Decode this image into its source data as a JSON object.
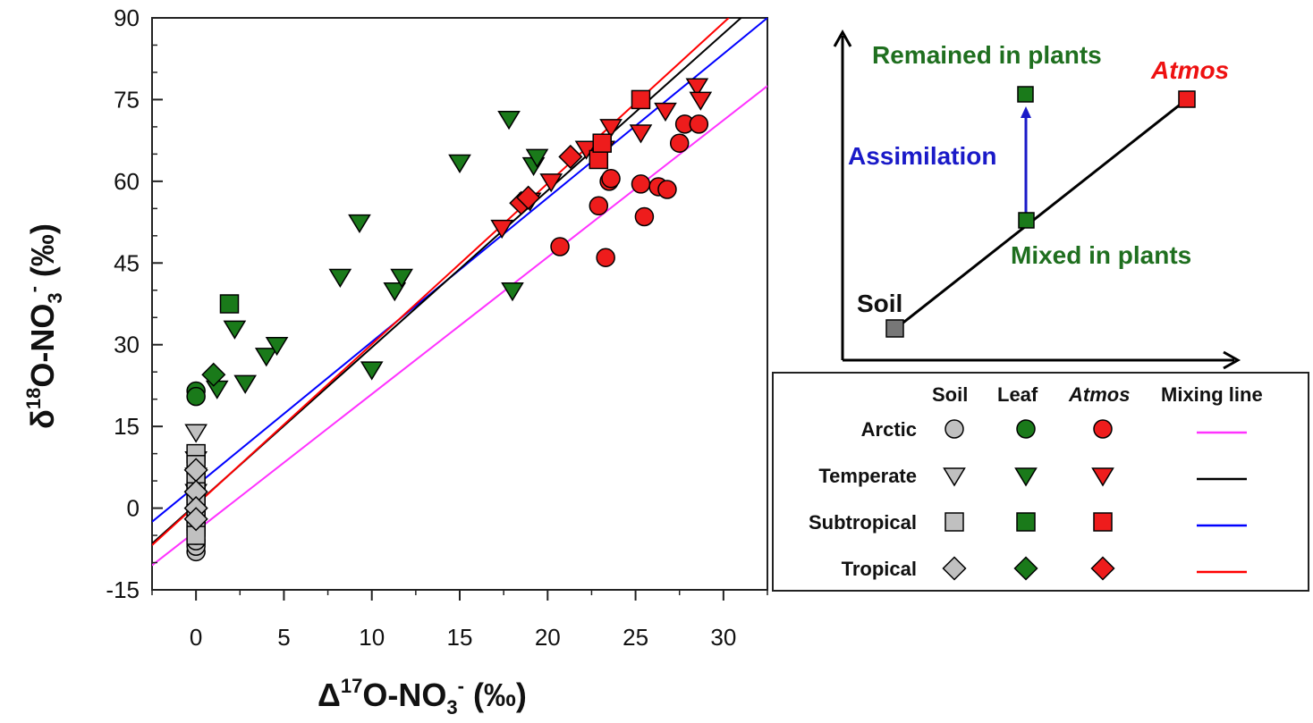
{
  "colors": {
    "soil_fill": "#c0c0c0",
    "leaf_fill": "#1a7a1a",
    "atmos_fill": "#ee1c1c",
    "green_text": "#1f6f1f",
    "blue_text": "#1a1ac8",
    "red_text": "#ee1111",
    "line_arctic": "#ff33ff",
    "line_temperate": "#000000",
    "line_subtropical": "#0000ff",
    "line_tropical": "#ff0000"
  },
  "chart_data": {
    "type": "scatter",
    "xlabel": {
      "main": "Δ",
      "sup": "17",
      "mid": "O-NO",
      "sub": "3",
      "sup2": "-",
      "end": " (‰)"
    },
    "ylabel": {
      "main": "δ",
      "sup": "18",
      "mid": "O-NO",
      "sub": "3",
      "sup2": "-",
      "end": " (‰)"
    },
    "xlim": [
      -2.5,
      32.5
    ],
    "ylim": [
      -15,
      90
    ],
    "xticks": [
      0,
      5,
      10,
      15,
      20,
      25,
      30
    ],
    "yticks": [
      -15,
      0,
      15,
      30,
      45,
      60,
      75,
      90
    ],
    "lines": [
      {
        "name": "Arctic",
        "color": "line_arctic",
        "points": [
          [
            -2.5,
            -10.5
          ],
          [
            32.5,
            77.5
          ]
        ]
      },
      {
        "name": "Subtropical",
        "color": "line_subtropical",
        "points": [
          [
            -2.5,
            -2.5
          ],
          [
            32.5,
            90
          ]
        ]
      },
      {
        "name": "Temperate",
        "color": "line_temperate",
        "points": [
          [
            -2.5,
            -6.5
          ],
          [
            31,
            90
          ]
        ]
      },
      {
        "name": "Tropical",
        "color": "line_tropical",
        "points": [
          [
            -2.5,
            -6.8
          ],
          [
            30.3,
            90
          ]
        ]
      }
    ],
    "series": [
      {
        "name": "Soil Arctic",
        "shape": "circle",
        "fill": "soil_fill",
        "x": [
          0,
          0,
          0,
          0,
          0,
          0,
          0,
          0,
          0,
          0,
          0,
          0,
          0,
          0
        ],
        "y": [
          -8,
          -7,
          -6,
          -5,
          -4,
          -3,
          -2,
          -1,
          0,
          1,
          2,
          3,
          4,
          5
        ]
      },
      {
        "name": "Soil Temperate",
        "shape": "tri_down",
        "fill": "soil_fill",
        "x": [
          0,
          0,
          0,
          0
        ],
        "y": [
          14,
          9,
          6,
          3
        ]
      },
      {
        "name": "Soil Subtropical",
        "shape": "square",
        "fill": "soil_fill",
        "x": [
          0,
          0,
          0,
          0,
          0,
          0,
          0,
          0
        ],
        "y": [
          10,
          8,
          5,
          3,
          1,
          -1,
          -3,
          -5
        ]
      },
      {
        "name": "Soil Tropical",
        "shape": "diamond",
        "fill": "soil_fill",
        "x": [
          0,
          0,
          0,
          0
        ],
        "y": [
          7,
          3,
          0,
          -2
        ]
      },
      {
        "name": "Leaf Arctic",
        "shape": "circle",
        "fill": "leaf_fill",
        "x": [
          0,
          0
        ],
        "y": [
          21.5,
          20.5
        ]
      },
      {
        "name": "Leaf Temperate",
        "shape": "tri_down",
        "fill": "leaf_fill",
        "x": [
          1.2,
          2.2,
          2.8,
          4.0,
          4.6,
          8.2,
          9.3,
          10.0,
          11.3,
          11.7,
          15.0,
          17.8,
          18.0,
          19.2,
          19.4
        ],
        "y": [
          22.0,
          33.0,
          23.0,
          28.0,
          30.0,
          42.5,
          52.5,
          25.5,
          40.0,
          42.5,
          63.5,
          71.5,
          40.0,
          63.0,
          64.5
        ]
      },
      {
        "name": "Leaf Subtropical",
        "shape": "square",
        "fill": "leaf_fill",
        "x": [
          1.9
        ],
        "y": [
          37.5
        ]
      },
      {
        "name": "Leaf Tropical",
        "shape": "diamond",
        "fill": "leaf_fill",
        "x": [
          1.0
        ],
        "y": [
          24.5
        ]
      },
      {
        "name": "Atmos Arctic",
        "shape": "circle",
        "fill": "atmos_fill",
        "x": [
          20.7,
          22.9,
          23.3,
          23.5,
          23.6,
          25.3,
          25.5,
          26.3,
          26.8,
          27.5,
          27.8,
          28.6
        ],
        "y": [
          48.0,
          55.5,
          46.0,
          60.0,
          60.5,
          59.5,
          53.5,
          59.0,
          58.5,
          67.0,
          70.5,
          70.5
        ]
      },
      {
        "name": "Atmos Temperate",
        "shape": "tri_down",
        "fill": "atmos_fill",
        "x": [
          17.4,
          19.0,
          20.2,
          22.2,
          23.2,
          23.6,
          25.3,
          26.7,
          28.5,
          28.7
        ],
        "y": [
          51.5,
          56.5,
          60.0,
          66.0,
          66.0,
          70.0,
          69.0,
          73.0,
          77.5,
          75.0
        ]
      },
      {
        "name": "Atmos Subtropical",
        "shape": "square",
        "fill": "atmos_fill",
        "x": [
          22.9,
          23.1,
          25.3
        ],
        "y": [
          64.0,
          67.0,
          75.0
        ]
      },
      {
        "name": "Atmos Tropical",
        "shape": "diamond",
        "fill": "atmos_fill",
        "x": [
          18.5,
          18.9,
          21.3
        ],
        "y": [
          56.0,
          57.0,
          64.5
        ]
      }
    ]
  },
  "schematic": {
    "labels": {
      "remained": "Remained in plants",
      "atmos": "Atmos",
      "assimilation": "Assimilation",
      "mixed": "Mixed in plants",
      "soil": "Soil"
    }
  },
  "legend": {
    "headers": [
      "Soil",
      "Leaf",
      "Atmos",
      "Mixing line"
    ],
    "rows": [
      {
        "label": "Arctic",
        "shape": "circle",
        "line_color": "line_arctic"
      },
      {
        "label": "Temperate",
        "shape": "tri_down",
        "line_color": "line_temperate"
      },
      {
        "label": "Subtropical",
        "shape": "square",
        "line_color": "line_subtropical"
      },
      {
        "label": "Tropical",
        "shape": "diamond",
        "line_color": "line_tropical"
      }
    ]
  }
}
